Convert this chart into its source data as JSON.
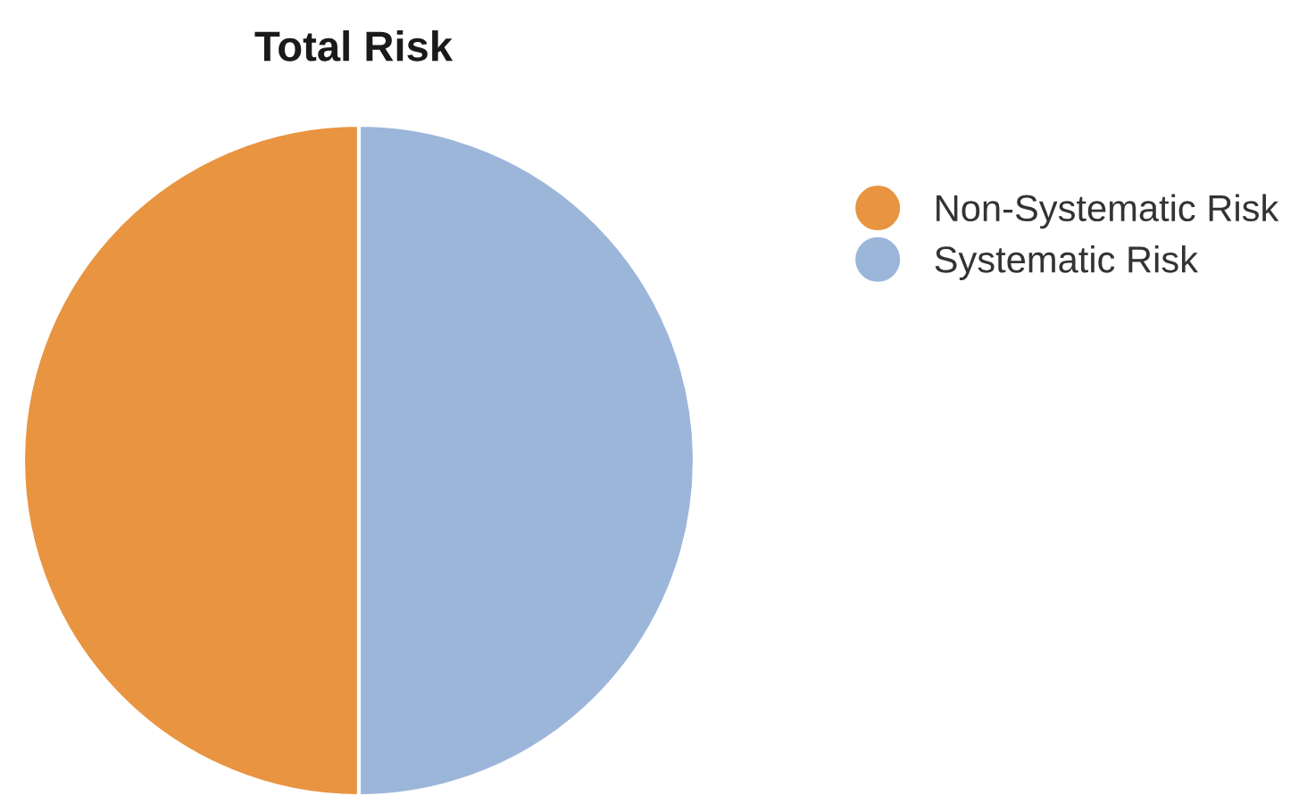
{
  "chart_data": {
    "type": "pie",
    "title": "Total Risk",
    "categories": [
      "Non-Systematic Risk",
      "Systematic Risk"
    ],
    "values": [
      50,
      50
    ],
    "colors": [
      "#e99440",
      "#9cb6da"
    ],
    "legend": "right"
  }
}
